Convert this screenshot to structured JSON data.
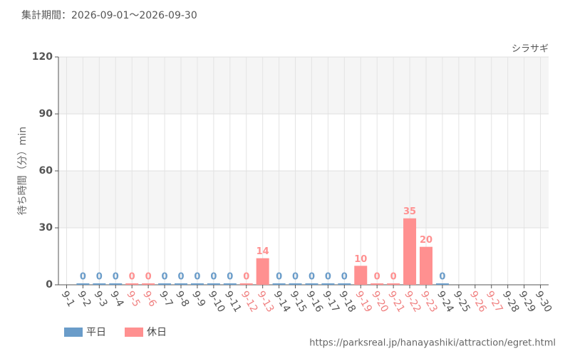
{
  "chart_data": {
    "type": "bar",
    "header": "集計期間：2026-09-01〜2026-09-30",
    "subtitle": "シラサギ",
    "y_label": "待ち時間（分）min",
    "source": "https://parksreal.jp/hanayashiki/attraction/egret.html",
    "categories": [
      "9-1",
      "9-2",
      "9-3",
      "9-4",
      "9-5",
      "9-6",
      "9-7",
      "9-8",
      "9-9",
      "9-10",
      "9-11",
      "9-12",
      "9-13",
      "9-14",
      "9-15",
      "9-16",
      "9-17",
      "9-18",
      "9-19",
      "9-20",
      "9-21",
      "9-22",
      "9-23",
      "9-24",
      "9-25",
      "9-26",
      "9-27",
      "9-28",
      "9-29",
      "9-30"
    ],
    "category_label_colors": [
      "#555555",
      "#555555",
      "#555555",
      "#555555",
      "#f08080",
      "#f08080",
      "#555555",
      "#555555",
      "#555555",
      "#555555",
      "#555555",
      "#f08080",
      "#f08080",
      "#555555",
      "#555555",
      "#555555",
      "#555555",
      "#555555",
      "#f08080",
      "#f08080",
      "#f08080",
      "#f08080",
      "#f08080",
      "#555555",
      "#555555",
      "#f08080",
      "#f08080",
      "#555555",
      "#555555",
      "#555555"
    ],
    "series": [
      {
        "name": "平日",
        "color": "#6a9cc9",
        "values": [
          null,
          0,
          0,
          0,
          null,
          null,
          0,
          0,
          0,
          0,
          0,
          null,
          null,
          0,
          0,
          0,
          0,
          0,
          null,
          null,
          null,
          null,
          null,
          0,
          null,
          null,
          null,
          null,
          null,
          null
        ]
      },
      {
        "name": "休日",
        "color": "#ff9090",
        "values": [
          null,
          null,
          null,
          null,
          0,
          0,
          null,
          null,
          null,
          null,
          null,
          0,
          14,
          null,
          null,
          null,
          null,
          null,
          10,
          0,
          0,
          35,
          20,
          null,
          null,
          null,
          null,
          null,
          null,
          null
        ]
      }
    ],
    "ylim": [
      0,
      120
    ],
    "yticks": [
      0,
      30,
      60,
      90,
      120
    ],
    "grid": true
  }
}
